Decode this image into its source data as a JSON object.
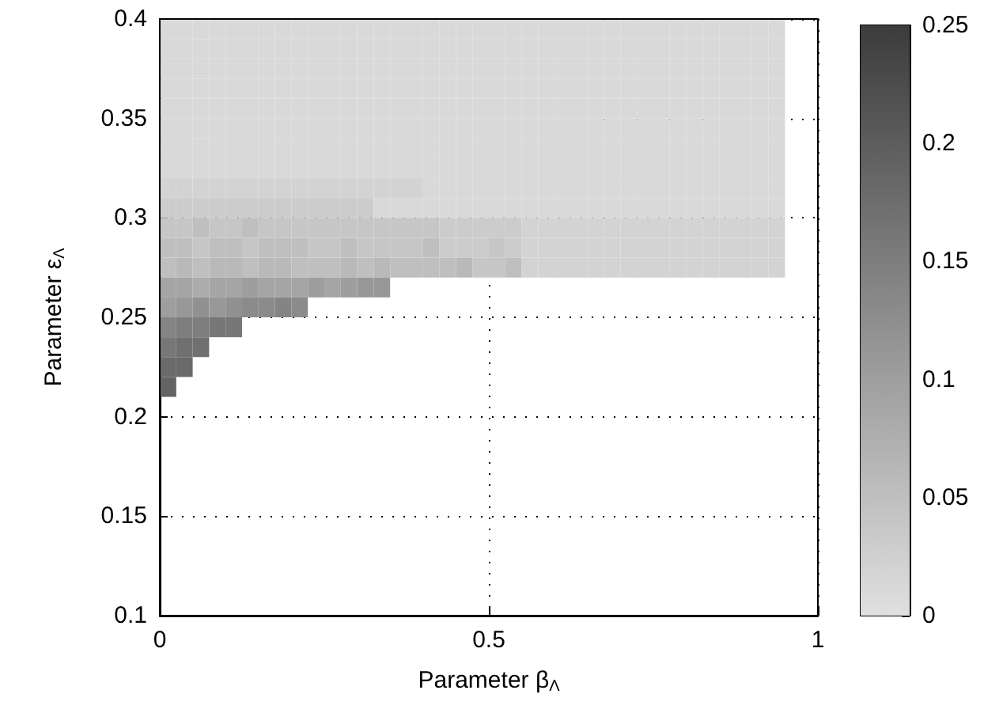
{
  "chart_data": {
    "type": "heatmap",
    "xlabel": "Parameter β$_{Λ}$",
    "ylabel": "Parameter ε$_{Λ}$",
    "x": [
      0.0125,
      0.0375,
      0.0625,
      0.0875,
      0.1125,
      0.1375,
      0.1625,
      0.1875,
      0.2125,
      0.2375,
      0.2625,
      0.2875,
      0.3125,
      0.3375,
      0.3625,
      0.3875,
      0.4125,
      0.4375,
      0.4625,
      0.4875,
      0.5125,
      0.5375,
      0.5625,
      0.5875,
      0.6125,
      0.6375,
      0.6625,
      0.6875,
      0.7125,
      0.7375,
      0.7625,
      0.7875,
      0.8125,
      0.8375,
      0.8625,
      0.8875,
      0.9125,
      0.9375
    ],
    "y": [
      0.395,
      0.385,
      0.375,
      0.365,
      0.355,
      0.345,
      0.335,
      0.325,
      0.315,
      0.305,
      0.295,
      0.285,
      0.275,
      0.265,
      0.255,
      0.245,
      0.235,
      0.225,
      0.215
    ],
    "xlim": [
      0,
      1
    ],
    "xticks": [
      0,
      0.5,
      1
    ],
    "ylim": [
      0.1,
      0.4
    ],
    "yticks": [
      0.1,
      0.15,
      0.2,
      0.25,
      0.3,
      0.35,
      0.4
    ],
    "clim": [
      0,
      0.25
    ],
    "cticks": [
      0,
      0.05,
      0.1,
      0.15,
      0.2,
      0.25
    ],
    "grid": true,
    "cells": [
      [
        0.01,
        0.01,
        0.01,
        0.01,
        0.01,
        0.01,
        0.01,
        0.01,
        0.01,
        0.01,
        0.01,
        0.01,
        0.01,
        0.01,
        0.01,
        0.01,
        0.01,
        0.01,
        0.01,
        0.01,
        0.01,
        0.01,
        0.01,
        0.01,
        0.01,
        0.01,
        0.01,
        0.01,
        0.01,
        0.01,
        0.01,
        0.01,
        0.01,
        0.01,
        0.01,
        0.01,
        0.01,
        0.01
      ],
      [
        0.01,
        0.01,
        0.01,
        0.01,
        0.01,
        0.01,
        0.01,
        0.01,
        0.01,
        0.01,
        0.01,
        0.01,
        0.01,
        0.01,
        0.01,
        0.01,
        0.01,
        0.01,
        0.01,
        0.01,
        0.01,
        0.01,
        0.01,
        0.01,
        0.01,
        0.01,
        0.01,
        0.01,
        0.01,
        0.01,
        0.01,
        0.01,
        0.01,
        0.01,
        0.01,
        0.01,
        0.01,
        0.01
      ],
      [
        0.01,
        0.01,
        0.01,
        0.01,
        0.01,
        0.01,
        0.01,
        0.01,
        0.01,
        0.01,
        0.01,
        0.01,
        0.01,
        0.01,
        0.01,
        0.01,
        0.01,
        0.01,
        0.01,
        0.01,
        0.01,
        0.01,
        0.01,
        0.01,
        0.01,
        0.01,
        0.01,
        0.01,
        0.01,
        0.01,
        0.01,
        0.01,
        0.01,
        0.01,
        0.01,
        0.01,
        0.01,
        0.01
      ],
      [
        0.01,
        0.01,
        0.01,
        0.01,
        0.01,
        0.01,
        0.01,
        0.01,
        0.01,
        0.01,
        0.01,
        0.01,
        0.01,
        0.01,
        0.01,
        0.01,
        0.01,
        0.01,
        0.01,
        0.01,
        0.01,
        0.01,
        0.01,
        0.01,
        0.01,
        0.01,
        0.01,
        0.01,
        0.01,
        0.01,
        0.01,
        0.01,
        0.01,
        0.01,
        0.01,
        0.01,
        0.01,
        0.01
      ],
      [
        0.01,
        0.01,
        0.01,
        0.01,
        0.01,
        0.01,
        0.01,
        0.01,
        0.01,
        0.01,
        0.01,
        0.01,
        0.01,
        0.01,
        0.01,
        0.01,
        0.01,
        0.01,
        0.01,
        0.01,
        0.01,
        0.01,
        0.01,
        0.01,
        0.01,
        0.01,
        0.01,
        0.01,
        0.01,
        0.01,
        0.01,
        0.01,
        0.01,
        0.01,
        0.01,
        0.01,
        0.01,
        0.01
      ],
      [
        0.01,
        0.01,
        0.01,
        0.01,
        0.01,
        0.01,
        0.01,
        0.01,
        0.01,
        0.01,
        0.01,
        0.01,
        0.01,
        0.01,
        0.01,
        0.01,
        0.01,
        0.01,
        0.01,
        0.01,
        0.01,
        0.01,
        0.01,
        0.01,
        0.01,
        0.01,
        0.01,
        0.01,
        0.01,
        0.01,
        0.01,
        0.01,
        0.01,
        0.01,
        0.01,
        0.01,
        0.01,
        0.01
      ],
      [
        0.01,
        0.01,
        0.01,
        0.01,
        0.01,
        0.01,
        0.01,
        0.01,
        0.01,
        0.01,
        0.01,
        0.01,
        0.01,
        0.01,
        0.01,
        0.01,
        0.01,
        0.01,
        0.01,
        0.01,
        0.01,
        0.01,
        0.01,
        0.01,
        0.01,
        0.01,
        0.01,
        0.01,
        0.01,
        0.01,
        0.01,
        0.01,
        0.01,
        0.01,
        0.01,
        0.01,
        0.01,
        0.01
      ],
      [
        0.01,
        0.01,
        0.01,
        0.01,
        0.01,
        0.01,
        0.01,
        0.01,
        0.01,
        0.01,
        0.01,
        0.01,
        0.01,
        0.01,
        0.01,
        0.01,
        0.01,
        0.01,
        0.01,
        0.01,
        0.01,
        0.01,
        0.01,
        0.01,
        0.01,
        0.01,
        0.01,
        0.01,
        0.01,
        0.01,
        0.01,
        0.01,
        0.01,
        0.01,
        0.01,
        0.01,
        0.01,
        0.01
      ],
      [
        0.02,
        0.02,
        0.02,
        0.02,
        0.02,
        0.02,
        0.02,
        0.02,
        0.02,
        0.02,
        0.02,
        0.02,
        0.02,
        0.02,
        0.02,
        0.02,
        0.01,
        0.01,
        0.01,
        0.01,
        0.01,
        0.01,
        0.01,
        0.01,
        0.01,
        0.01,
        0.01,
        0.01,
        0.01,
        0.01,
        0.01,
        0.01,
        0.01,
        0.01,
        0.01,
        0.01,
        0.01,
        0.01
      ],
      [
        0.03,
        0.03,
        0.03,
        0.03,
        0.03,
        0.03,
        0.03,
        0.03,
        0.03,
        0.03,
        0.03,
        0.03,
        0.03,
        0.01,
        0.01,
        0.01,
        0.01,
        0.01,
        0.01,
        0.01,
        0.01,
        0.01,
        0.01,
        0.01,
        0.01,
        0.01,
        0.01,
        0.01,
        0.01,
        0.01,
        0.01,
        0.01,
        0.01,
        0.01,
        0.01,
        0.01,
        0.01,
        0.01
      ],
      [
        0.04,
        0.04,
        0.05,
        0.04,
        0.04,
        0.05,
        0.04,
        0.04,
        0.04,
        0.04,
        0.04,
        0.04,
        0.04,
        0.04,
        0.04,
        0.04,
        0.04,
        0.03,
        0.03,
        0.03,
        0.03,
        0.03,
        0.02,
        0.02,
        0.02,
        0.02,
        0.02,
        0.02,
        0.02,
        0.02,
        0.02,
        0.02,
        0.02,
        0.02,
        0.02,
        0.02,
        0.02,
        0.02
      ],
      [
        0.05,
        0.05,
        0.04,
        0.05,
        0.05,
        0.04,
        0.05,
        0.05,
        0.05,
        0.04,
        0.04,
        0.05,
        0.04,
        0.04,
        0.04,
        0.04,
        0.05,
        0.03,
        0.03,
        0.03,
        0.04,
        0.03,
        0.02,
        0.02,
        0.02,
        0.02,
        0.02,
        0.02,
        0.02,
        0.02,
        0.02,
        0.02,
        0.02,
        0.02,
        0.02,
        0.02,
        0.02,
        0.02
      ],
      [
        0.05,
        0.06,
        0.05,
        0.06,
        0.06,
        0.05,
        0.06,
        0.06,
        0.05,
        0.05,
        0.05,
        0.06,
        0.05,
        0.06,
        0.05,
        0.05,
        0.05,
        0.05,
        0.06,
        0.04,
        0.04,
        0.05,
        0.02,
        0.02,
        0.02,
        0.02,
        0.02,
        0.02,
        0.02,
        0.02,
        0.02,
        0.02,
        0.02,
        0.02,
        0.02,
        0.02,
        0.02,
        0.02
      ],
      [
        0.09,
        0.09,
        0.08,
        0.09,
        0.09,
        0.1,
        0.09,
        0.09,
        0.09,
        0.1,
        0.09,
        0.1,
        0.11,
        0.11,
        null,
        null,
        null,
        null,
        null,
        null,
        null,
        null,
        null,
        null,
        null,
        null,
        null,
        null,
        null,
        null,
        null,
        null,
        null,
        null,
        null,
        null,
        null,
        null
      ],
      [
        0.1,
        0.11,
        0.12,
        0.11,
        0.12,
        0.13,
        0.13,
        0.14,
        0.13,
        null,
        null,
        null,
        null,
        null,
        null,
        null,
        null,
        null,
        null,
        null,
        null,
        null,
        null,
        null,
        null,
        null,
        null,
        null,
        null,
        null,
        null,
        null,
        null,
        null,
        null,
        null,
        null,
        null
      ],
      [
        0.14,
        0.15,
        0.15,
        0.16,
        0.16,
        null,
        null,
        null,
        null,
        null,
        null,
        null,
        null,
        null,
        null,
        null,
        null,
        null,
        null,
        null,
        null,
        null,
        null,
        null,
        null,
        null,
        null,
        null,
        null,
        null,
        null,
        null,
        null,
        null,
        null,
        null,
        null,
        null
      ],
      [
        0.16,
        0.17,
        0.17,
        null,
        null,
        null,
        null,
        null,
        null,
        null,
        null,
        null,
        null,
        null,
        null,
        null,
        null,
        null,
        null,
        null,
        null,
        null,
        null,
        null,
        null,
        null,
        null,
        null,
        null,
        null,
        null,
        null,
        null,
        null,
        null,
        null,
        null,
        null
      ],
      [
        0.18,
        0.18,
        null,
        null,
        null,
        null,
        null,
        null,
        null,
        null,
        null,
        null,
        null,
        null,
        null,
        null,
        null,
        null,
        null,
        null,
        null,
        null,
        null,
        null,
        null,
        null,
        null,
        null,
        null,
        null,
        null,
        null,
        null,
        null,
        null,
        null,
        null,
        null
      ],
      [
        0.19,
        null,
        null,
        null,
        null,
        null,
        null,
        null,
        null,
        null,
        null,
        null,
        null,
        null,
        null,
        null,
        null,
        null,
        null,
        null,
        null,
        null,
        null,
        null,
        null,
        null,
        null,
        null,
        null,
        null,
        null,
        null,
        null,
        null,
        null,
        null,
        null,
        null
      ]
    ]
  }
}
